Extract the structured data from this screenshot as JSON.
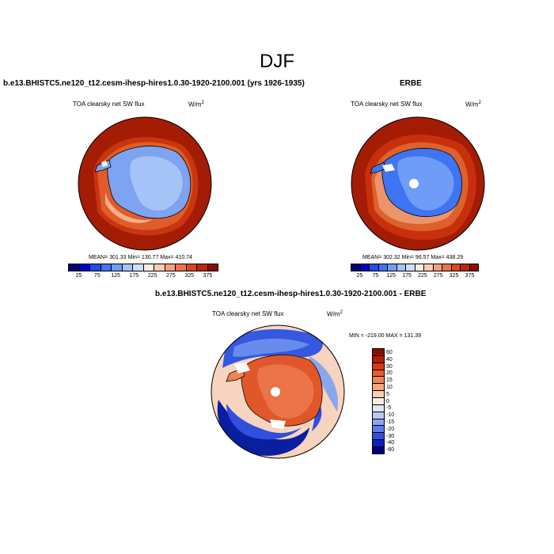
{
  "figure_title": "DJF",
  "panels": {
    "model": {
      "title": "b.e13.BHISTC5.ne120_t12.cesm-ihesp-hires1.0.30-1920-2100.001 (yrs 1926-1935)",
      "variable": "TOA clearsky net SW flux",
      "units_base": "W/m",
      "units_exp": "2",
      "stats": "MEAN= 301.33  Min= 130.77  Max= 410.74"
    },
    "obs": {
      "title": "ERBE",
      "variable": "TOA clearsky net SW flux",
      "units_base": "W/m",
      "units_exp": "2",
      "stats": "MEAN= 302.32  Min= 96.57  Max= 438.29"
    },
    "diff": {
      "title": "b.e13.BHISTC5.ne120_t12.cesm-ihesp-hires1.0.30-1920-2100.001 - ERBE",
      "variable": "TOA clearsky net SW flux",
      "units_base": "W/m",
      "units_exp": "2",
      "stats": "MIN = -219.00 MAX = 131.39"
    }
  },
  "colorbar_abs": {
    "colors": [
      "#00007a",
      "#0000c8",
      "#1f4fe6",
      "#3f74f2",
      "#6f9cf7",
      "#a6c3f8",
      "#cfe0f6",
      "#f6ede0",
      "#f7cdb0",
      "#f3a27a",
      "#ea7447",
      "#d9481d",
      "#b9270b",
      "#8b0e02"
    ],
    "tick_labels": [
      "25",
      "75",
      "125",
      "175",
      "225",
      "275",
      "325",
      "375"
    ]
  },
  "colorbar_diff": {
    "colors": [
      "#8b0e02",
      "#b51d05",
      "#d53b10",
      "#e75d2a",
      "#f08450",
      "#f6a97b",
      "#f9d0b2",
      "#fbeee0",
      "#dfe6f5",
      "#b7c9f3",
      "#8aa6f0",
      "#5d7de8",
      "#2f4fdc",
      "#0a1fc0",
      "#00007a"
    ],
    "labels": [
      "60",
      "40",
      "30",
      "20",
      "15",
      "10",
      "5",
      "0",
      "-5",
      "-10",
      "-15",
      "-20",
      "-30",
      "-40",
      "-60"
    ]
  },
  "colors": {
    "land_white": "#ffffff",
    "warm_dark": "#a51c05",
    "warm_mid": "#e0572a",
    "cold_mid": "#7ea3f0",
    "cold_dark": "#0a1fa0"
  }
}
